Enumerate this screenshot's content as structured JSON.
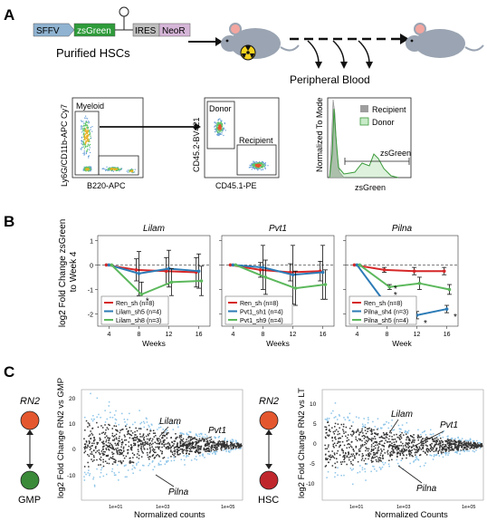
{
  "panel_a": {
    "letter": "A",
    "construct": [
      "SFFV",
      "zsGreen",
      "IRES",
      "NeoR"
    ],
    "purified_label": "Purified HSCs",
    "pb_label": "Peripheral Blood",
    "flow1": {
      "ylabel": "Ly6G/CD11b-APC Cy7",
      "xlabel": "B220-APC",
      "gate": "Myeloid"
    },
    "flow2": {
      "ylabel": "CD45.2-BV421",
      "xlabel": "CD45.1-PE",
      "gate1": "Donor",
      "gate2": "Recipient"
    },
    "flow3": {
      "ylabel": "Normalized To Mode",
      "xlabel": "zsGreen",
      "legend": [
        "Recipient",
        "Donor"
      ],
      "gate": "zsGreen"
    },
    "colors": {
      "sffv": "#8fb3d1",
      "zsgreen": "#2e9b3a",
      "ires": "#bfbfbf",
      "neor": "#d6b6d8"
    }
  },
  "panel_b": {
    "letter": "B",
    "ylabel": "log2 Fold Change zsGreen\nto Week 4",
    "chart_data": [
      {
        "type": "line",
        "title": "Lilam",
        "xlabel": "Weeks",
        "x": [
          4,
          8,
          12,
          16
        ],
        "ylim": [
          -2.5,
          1.2
        ],
        "xticks": [
          "4",
          "8",
          "12",
          "16"
        ],
        "yticks": [
          "1",
          "0",
          "-1",
          "-2"
        ],
        "series": [
          {
            "name": "Ren_sh (n=8)",
            "color": "#d62728",
            "values": [
              0,
              -0.2,
              -0.25,
              -0.3
            ],
            "err": [
              0,
              0.45,
              0.55,
              0.6
            ]
          },
          {
            "name": "Lilam_sh5 (n=4)",
            "color": "#2c7bb6",
            "values": [
              0,
              -0.35,
              -0.15,
              -0.25
            ],
            "err": [
              0,
              0.9,
              0.75,
              0.7
            ]
          },
          {
            "name": "Lilam_sh8 (n=3)",
            "color": "#5cb85c",
            "values": [
              0,
              -1.2,
              -0.7,
              -0.65
            ],
            "err": [
              0,
              0.5,
              0.55,
              0.6
            ]
          }
        ],
        "annotations": [
          "*"
        ]
      },
      {
        "type": "line",
        "title": "Pvt1",
        "xlabel": "Weeks",
        "x": [
          4,
          8,
          12,
          16
        ],
        "ylim": [
          -2.5,
          1.2
        ],
        "xticks": [
          "4",
          "8",
          "12",
          "16"
        ],
        "yticks": [
          "1",
          "0",
          "-1",
          "-2"
        ],
        "series": [
          {
            "name": "Ren_sh (n=8)",
            "color": "#d62728",
            "values": [
              0,
              -0.2,
              -0.3,
              -0.25
            ],
            "err": [
              0,
              0.3,
              0.35,
              0.4
            ]
          },
          {
            "name": "Pvt1_sh1 (n=4)",
            "color": "#2c7bb6",
            "values": [
              0,
              -0.1,
              -0.4,
              -0.3
            ],
            "err": [
              0,
              0.9,
              1.2,
              1.1
            ]
          },
          {
            "name": "Pvt1_sh9 (n=4)",
            "color": "#5cb85c",
            "values": [
              0,
              -0.5,
              -0.95,
              -0.8
            ],
            "err": [
              0,
              0.7,
              0.7,
              0.6
            ]
          }
        ],
        "annotations": []
      },
      {
        "type": "line",
        "title": "Pilna",
        "xlabel": "Week",
        "x": [
          4,
          8,
          12,
          16
        ],
        "ylim": [
          -2.5,
          1.2
        ],
        "xticks": [
          "4",
          "8",
          "12",
          "16"
        ],
        "yticks": [
          "1",
          "0",
          "-1",
          "-2"
        ],
        "series": [
          {
            "name": "Ren_sh (n=8)",
            "color": "#d62728",
            "values": [
              0,
              -0.2,
              -0.25,
              -0.25
            ],
            "err": [
              0,
              0.1,
              0.15,
              0.15
            ]
          },
          {
            "name": "Pilna_sh4 (n=3)",
            "color": "#2c7bb6",
            "values": [
              0,
              -1.65,
              -2.05,
              -1.8
            ],
            "err": [
              0,
              0.15,
              0.15,
              0.15
            ]
          },
          {
            "name": "Pilna_sh5 (n=4)",
            "color": "#5cb85c",
            "values": [
              0,
              -0.9,
              -0.75,
              -1.0
            ],
            "err": [
              0,
              0.1,
              0.25,
              0.2
            ]
          }
        ],
        "annotations": [
          "*",
          "*",
          "*",
          "*"
        ]
      }
    ]
  },
  "panel_c": {
    "letter": "C",
    "left": {
      "node_top": "RN2",
      "node_bottom": "GMP",
      "node_top_color": "#e4572e",
      "node_bottom_color": "#3a8a3a",
      "ylabel": "log2 Fold Change RN2 vs GMP",
      "xlabel": "Normalized counts",
      "xticks": [
        "1e+01",
        "1e+03",
        "1e+05"
      ],
      "yticks": [
        "20",
        "10",
        "0",
        "-10"
      ],
      "labels": [
        "Lilam",
        "Pvt1",
        "Pilna"
      ]
    },
    "right": {
      "node_top": "RN2",
      "node_bottom": "HSC",
      "node_top_color": "#e4572e",
      "node_bottom_color": "#c0272d",
      "ylabel": "log2 Fold Change RN2 vs LT",
      "xlabel": "Normalized Counts",
      "xticks": [
        "1e+01",
        "1e+03",
        "1e+05"
      ],
      "yticks": [
        "10",
        "5",
        "0",
        "-5",
        "-10"
      ],
      "labels": [
        "Lilam",
        "Pvt1",
        "Pilna"
      ]
    },
    "colors": {
      "sig": "#8ec5e8",
      "nonsig": "#333333"
    }
  }
}
